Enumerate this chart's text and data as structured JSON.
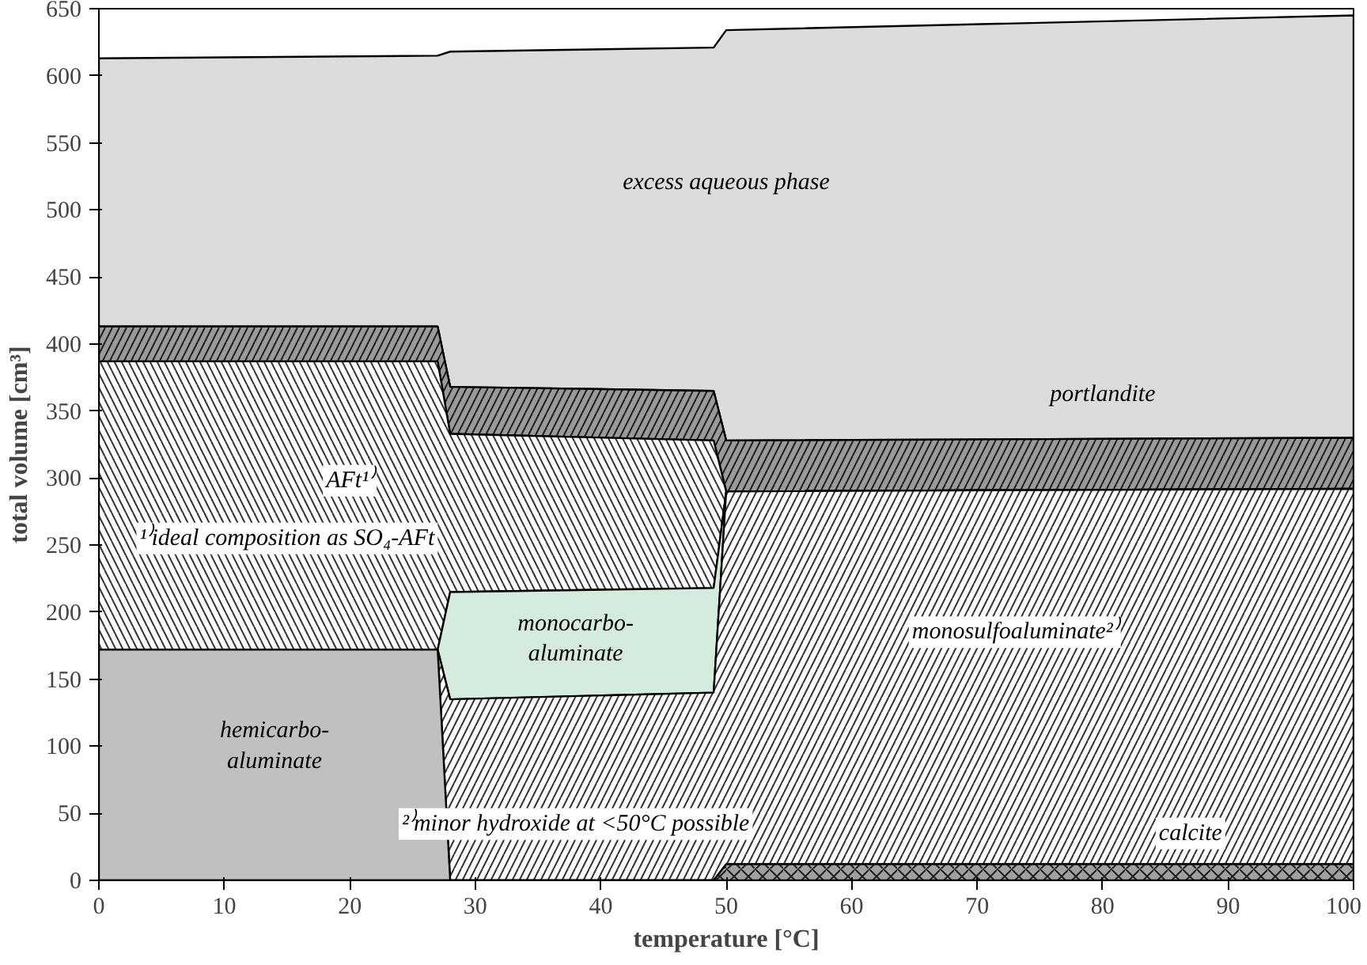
{
  "chart_data": {
    "type": "area",
    "stacked": true,
    "xlabel": "temperature [°C]",
    "ylabel": "total volume [cm³]",
    "x": [
      0,
      27,
      28,
      49,
      50,
      100
    ],
    "series": [
      {
        "color": "#a0a0a0",
        "values": [
          0,
          0,
          0,
          0,
          12,
          12
        ]
      },
      {
        "color": "#c0c0c0",
        "values": [
          172,
          172,
          0,
          0,
          0,
          0
        ]
      },
      {
        "color": "#ffffff",
        "values": [
          0,
          0,
          135,
          140,
          278,
          280
        ]
      },
      {
        "color": "#d4ebdd",
        "values": [
          0,
          0,
          80,
          78,
          0,
          0
        ]
      },
      {
        "color": "#ffffff",
        "values": [
          215,
          215,
          118,
          110,
          0,
          0
        ]
      },
      {
        "color": "#9a9a9a",
        "values": [
          26,
          26,
          35,
          37,
          38,
          38
        ]
      },
      {
        "color": "#dcdcdc",
        "values": [
          200,
          202,
          250,
          256,
          306,
          315
        ]
      }
    ],
    "annotations": [
      "excess aqueous phase",
      "portlandite",
      "AFt¹⁾",
      "¹⁾ideal composition as SO₄-AFt",
      "monocarbo-\naluminate",
      "hemicarbo-\naluminate",
      "monosulfoaluminate²⁾",
      "²⁾minor hydroxide at <50°C possible",
      "calcite"
    ],
    "xlim": [
      0,
      100
    ],
    "ylim": [
      0,
      650
    ],
    "xticks": [
      0,
      10,
      20,
      30,
      40,
      50,
      60,
      70,
      80,
      90,
      100
    ],
    "yticks": [
      0,
      50,
      100,
      150,
      200,
      250,
      300,
      350,
      400,
      450,
      500,
      550,
      600,
      650
    ],
    "grid": false
  }
}
